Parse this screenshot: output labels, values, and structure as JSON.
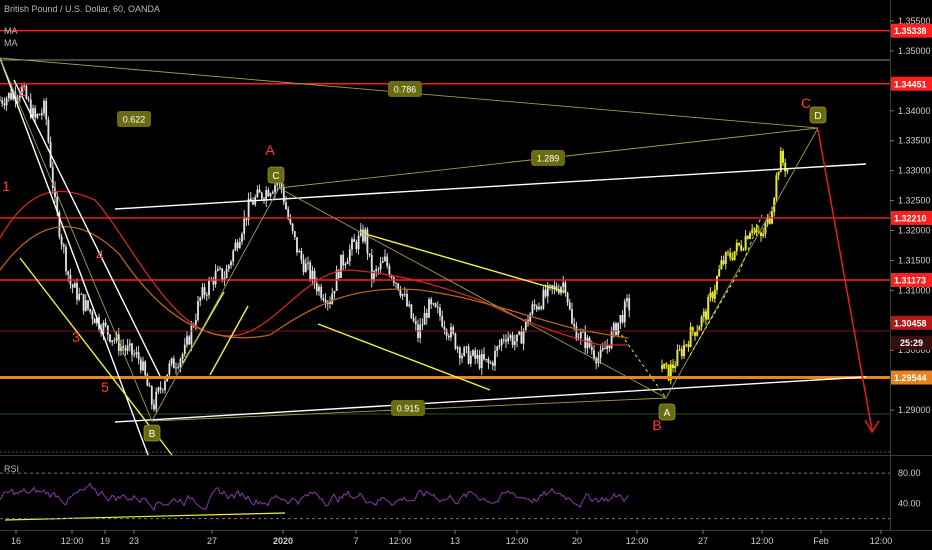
{
  "header": {
    "symbol_line": "British Pound / U.S. Dollar, 60, OANDA",
    "indicators": [
      "MA",
      "MA"
    ]
  },
  "colors": {
    "background": "#000000",
    "candle": "#e6e6e6",
    "wave_candles": "#e8e83a",
    "level": "#ff1f1f",
    "support": "#e8821e",
    "trend": "#ffffff",
    "channel": "#f2f23a",
    "fib_line": "#9aa04a",
    "ma_red": "#d02828",
    "ma_orange": "#b5651d",
    "rsi": "#8a3aa8",
    "wave_label": "#ff3b3b",
    "badge_bg": "#6a6a10",
    "badge_text": "#ffffff",
    "axis_text": "#cfcfcf"
  },
  "chart_data": {
    "type": "candlestick",
    "title": "British Pound / U.S. Dollar, 60, OANDA",
    "y_axis": {
      "range": [
        1.2825,
        1.3585
      ],
      "ticks": [
        "1.35500",
        "1.35000",
        "1.34500",
        "1.34000",
        "1.33500",
        "1.33000",
        "1.32500",
        "1.32000",
        "1.31500",
        "1.31000",
        "1.30500",
        "1.30000",
        "1.29500",
        "1.29000"
      ]
    },
    "x_axis": {
      "ticks": [
        "16",
        "12:00",
        "19",
        "23",
        "27",
        "2020",
        "7",
        "12:00",
        "13",
        "12:00",
        "20",
        "12:00",
        "27",
        "12:00",
        "Feb",
        "12:00"
      ]
    },
    "price_path": [
      [
        "16 12:00-",
        1.3418
      ],
      [
        "16",
        1.3436
      ],
      [
        "16 end",
        1.3385
      ],
      [
        "17",
        1.3405
      ],
      [
        "18",
        1.3242
      ],
      [
        "19",
        1.3112
      ],
      [
        "19 12:00",
        1.3075
      ],
      [
        "20",
        1.3045
      ],
      [
        "21",
        1.3008
      ],
      [
        "23 early",
        1.2985
      ],
      [
        "23",
        1.2905
      ],
      [
        "24",
        1.2968
      ],
      [
        "25",
        1.2998
      ],
      [
        "26",
        1.3085
      ],
      [
        "27",
        1.3125
      ],
      [
        "28",
        1.3125
      ],
      [
        "29",
        1.3245
      ],
      [
        "30",
        1.3285
      ],
      [
        "31",
        1.3205
      ],
      [
        "2020",
        1.3155
      ],
      [
        "1",
        1.3105
      ],
      [
        "2",
        1.3085
      ],
      [
        "3",
        1.3142
      ],
      [
        "6",
        1.3172
      ],
      [
        "7",
        1.3195
      ],
      [
        "7 12:00",
        1.312
      ],
      [
        "8",
        1.3148
      ],
      [
        "9",
        1.3105
      ],
      [
        "10",
        1.3025
      ],
      [
        "10 12:00",
        1.3072
      ],
      [
        "13",
        1.3058
      ],
      [
        "13 12:00",
        1.2995
      ],
      [
        "14",
        1.2975
      ],
      [
        "15",
        1.3028
      ],
      [
        "15 12:00",
        1.3012
      ],
      [
        "16",
        1.3068
      ],
      [
        "17",
        1.309
      ],
      [
        "17 12:00",
        1.3115
      ],
      [
        "18",
        1.304
      ],
      [
        "19",
        1.301
      ],
      [
        "20",
        1.2985
      ],
      [
        "21",
        1.3025
      ],
      [
        "21 12:00",
        1.3045
      ],
      [
        "22",
        1.3078
      ],
      [
        "22 12:00",
        1.304
      ]
    ],
    "projection_path": [
      [
        "23",
        1.2975
      ],
      [
        "24",
        1.296
      ],
      [
        "26",
        1.3025
      ],
      [
        "27",
        1.3058
      ],
      [
        "27 12:00",
        1.3145
      ],
      [
        "28",
        1.3178
      ],
      [
        "29",
        1.3212
      ],
      [
        "29 12:00",
        1.3182
      ],
      [
        "30",
        1.3225
      ],
      [
        "31",
        1.3322
      ],
      [
        "31 12:00",
        1.3295
      ]
    ],
    "horizontal_levels": [
      {
        "label": "1.35338",
        "value": 1.35338,
        "kind": "resistance"
      },
      {
        "label": "1.34451",
        "value": 1.34451,
        "kind": "resistance"
      },
      {
        "label": "1.32210",
        "value": 1.3221,
        "kind": "resistance"
      },
      {
        "label": "1.31173",
        "value": 1.31173,
        "kind": "resistance"
      },
      {
        "label": "1.29544",
        "value": 1.29544,
        "kind": "support"
      }
    ],
    "price_labels": [
      {
        "label": "1.30458",
        "value": 1.30458
      },
      {
        "label": "25:29",
        "value": 1.30292
      }
    ],
    "fib_badges": [
      "0.786",
      "0.622",
      "1.289",
      "0.915"
    ],
    "wave_labels": [
      "1",
      "2",
      "3",
      "4",
      "5",
      "A",
      "B",
      "C",
      "A",
      "B",
      "C",
      "D"
    ],
    "rsi": {
      "label": "RSI",
      "ticks": [
        "80.00",
        "40.00"
      ],
      "range": [
        5,
        100
      ]
    }
  }
}
